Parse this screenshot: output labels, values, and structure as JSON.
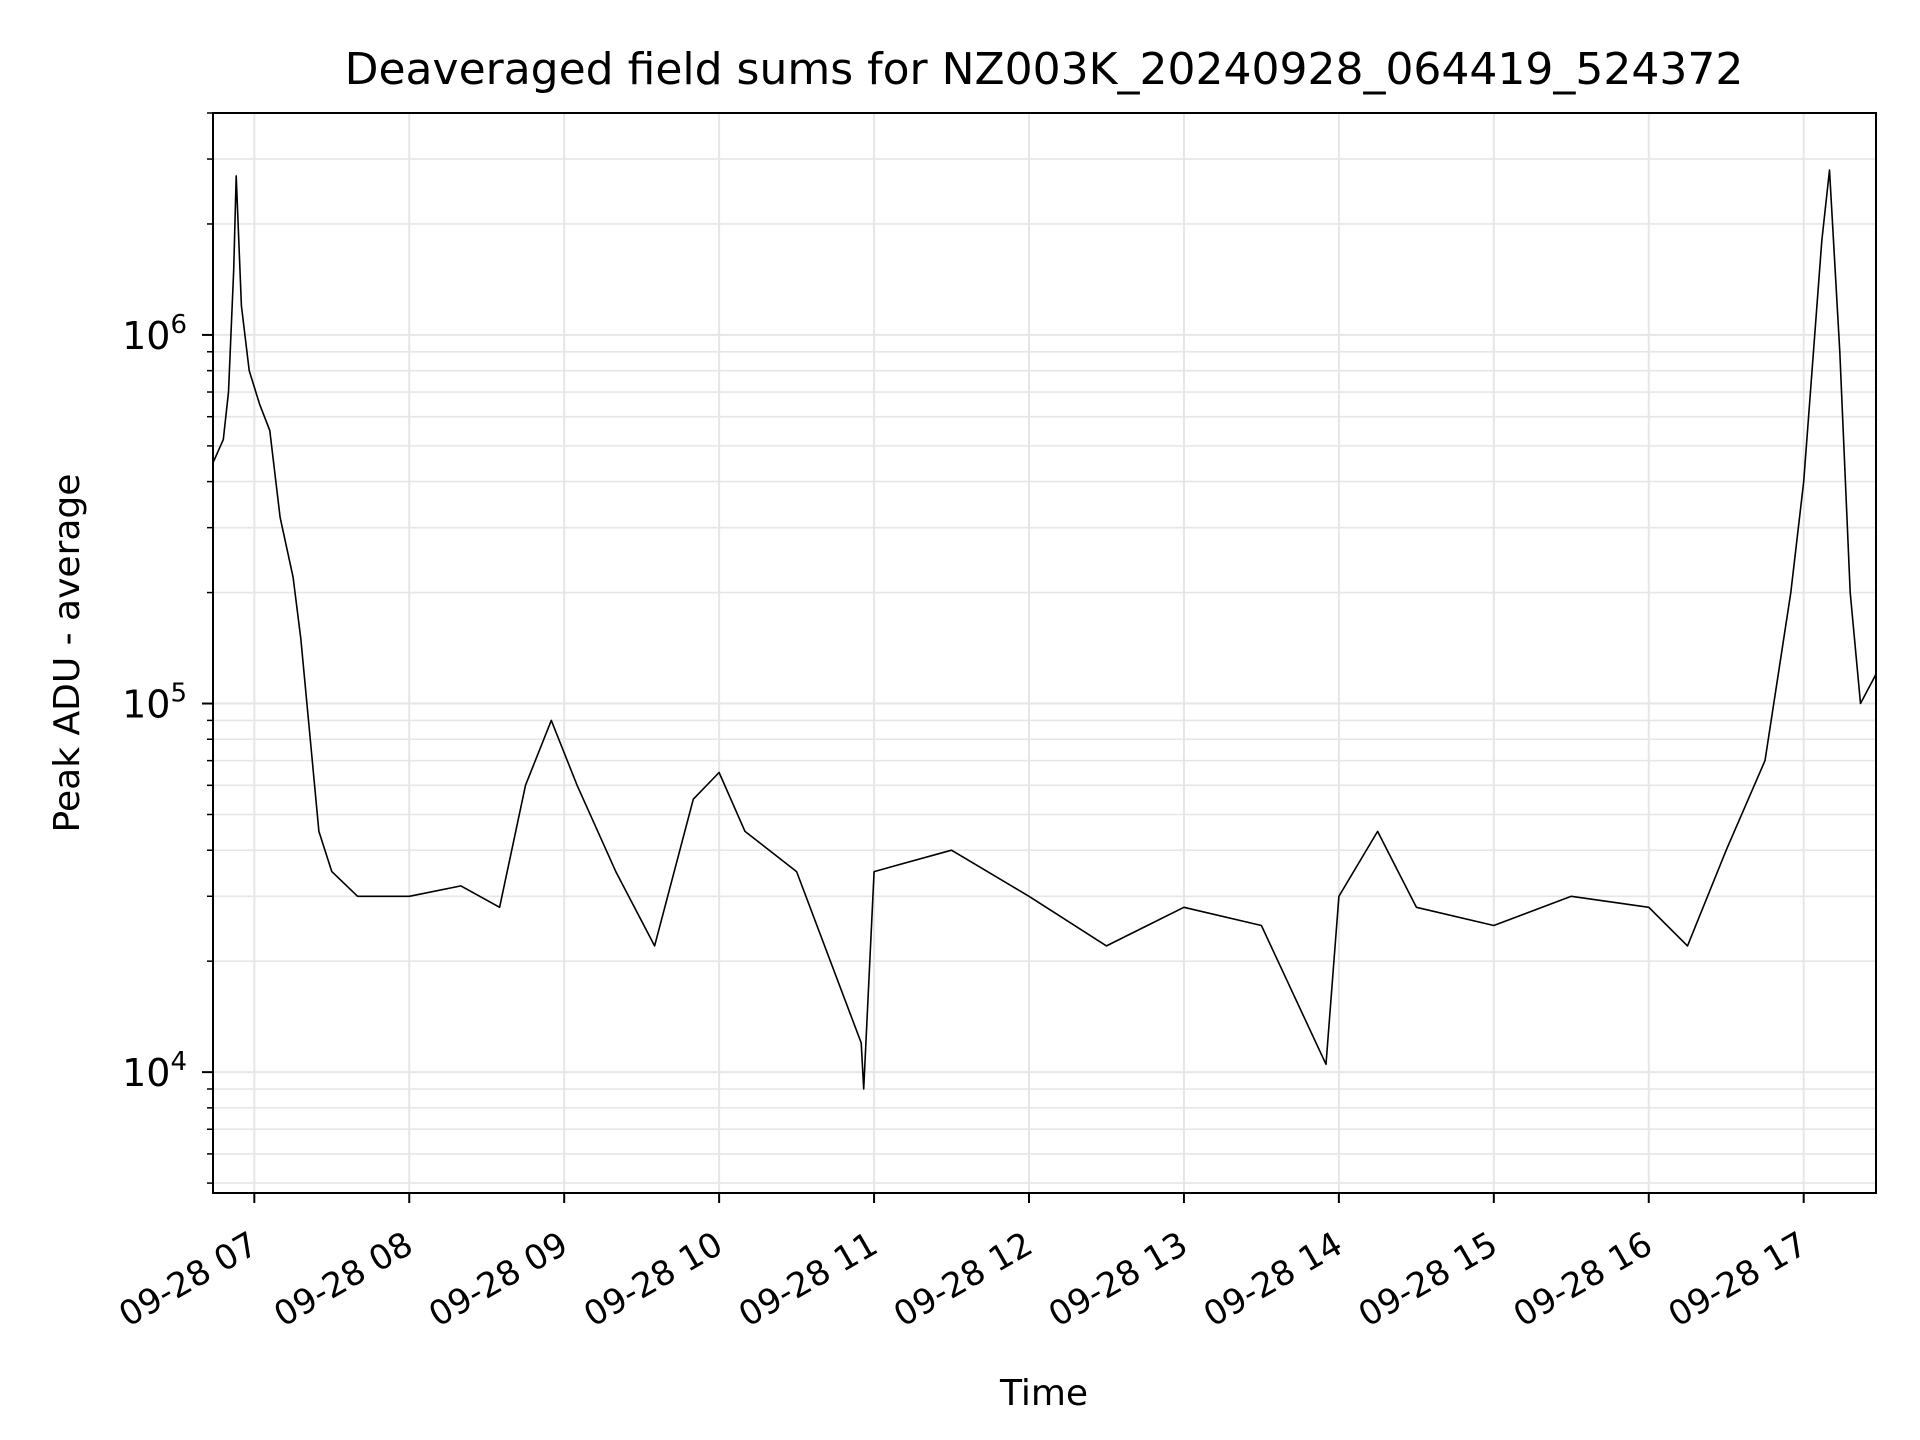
{
  "chart_data": {
    "type": "line",
    "title": "Deaveraged field sums for NZ003K_20240928_064419_524372",
    "xlabel": "Time",
    "ylabel": "Peak ADU - average",
    "y_scale": "log",
    "ylim": [
      4700,
      4000000
    ],
    "xlim": [
      "2024-09-28 06:44",
      "2024-09-28 17:28"
    ],
    "grid": true,
    "line_color": "#000000",
    "grid_color": "#e6e6e6",
    "x_ticks": [
      {
        "t": "2024-09-28 07:00",
        "label": "09-28 07"
      },
      {
        "t": "2024-09-28 08:00",
        "label": "09-28 08"
      },
      {
        "t": "2024-09-28 09:00",
        "label": "09-28 09"
      },
      {
        "t": "2024-09-28 10:00",
        "label": "09-28 10"
      },
      {
        "t": "2024-09-28 11:00",
        "label": "09-28 11"
      },
      {
        "t": "2024-09-28 12:00",
        "label": "09-28 12"
      },
      {
        "t": "2024-09-28 13:00",
        "label": "09-28 13"
      },
      {
        "t": "2024-09-28 14:00",
        "label": "09-28 14"
      },
      {
        "t": "2024-09-28 15:00",
        "label": "09-28 15"
      },
      {
        "t": "2024-09-28 16:00",
        "label": "09-28 16"
      },
      {
        "t": "2024-09-28 17:00",
        "label": "09-28 17"
      }
    ],
    "y_ticks": [
      {
        "value": 10000,
        "base": "10",
        "exp": "4"
      },
      {
        "value": 100000,
        "base": "10",
        "exp": "5"
      },
      {
        "value": 1000000,
        "base": "10",
        "exp": "6"
      }
    ],
    "series": [
      {
        "points": [
          [
            "2024-09-28 06:44",
            450000
          ],
          [
            "2024-09-28 06:48",
            520000
          ],
          [
            "2024-09-28 06:50",
            700000
          ],
          [
            "2024-09-28 06:52",
            1500000
          ],
          [
            "2024-09-28 06:53",
            2700000
          ],
          [
            "2024-09-28 06:55",
            1200000
          ],
          [
            "2024-09-28 06:58",
            800000
          ],
          [
            "2024-09-28 07:02",
            650000
          ],
          [
            "2024-09-28 07:06",
            550000
          ],
          [
            "2024-09-28 07:10",
            320000
          ],
          [
            "2024-09-28 07:15",
            220000
          ],
          [
            "2024-09-28 07:18",
            150000
          ],
          [
            "2024-09-28 07:21",
            90000
          ],
          [
            "2024-09-28 07:25",
            45000
          ],
          [
            "2024-09-28 07:30",
            35000
          ],
          [
            "2024-09-28 07:40",
            30000
          ],
          [
            "2024-09-28 08:00",
            30000
          ],
          [
            "2024-09-28 08:20",
            32000
          ],
          [
            "2024-09-28 08:35",
            28000
          ],
          [
            "2024-09-28 08:45",
            60000
          ],
          [
            "2024-09-28 08:55",
            90000
          ],
          [
            "2024-09-28 09:05",
            60000
          ],
          [
            "2024-09-28 09:20",
            35000
          ],
          [
            "2024-09-28 09:35",
            22000
          ],
          [
            "2024-09-28 09:50",
            55000
          ],
          [
            "2024-09-28 10:00",
            65000
          ],
          [
            "2024-09-28 10:10",
            45000
          ],
          [
            "2024-09-28 10:30",
            35000
          ],
          [
            "2024-09-28 10:55",
            12000
          ],
          [
            "2024-09-28 10:56",
            9000
          ],
          [
            "2024-09-28 11:00",
            35000
          ],
          [
            "2024-09-28 11:30",
            40000
          ],
          [
            "2024-09-28 12:00",
            30000
          ],
          [
            "2024-09-28 12:30",
            22000
          ],
          [
            "2024-09-28 13:00",
            28000
          ],
          [
            "2024-09-28 13:30",
            25000
          ],
          [
            "2024-09-28 13:55",
            10500
          ],
          [
            "2024-09-28 14:00",
            30000
          ],
          [
            "2024-09-28 14:15",
            45000
          ],
          [
            "2024-09-28 14:30",
            28000
          ],
          [
            "2024-09-28 15:00",
            25000
          ],
          [
            "2024-09-28 15:30",
            30000
          ],
          [
            "2024-09-28 16:00",
            28000
          ],
          [
            "2024-09-28 16:15",
            22000
          ],
          [
            "2024-09-28 16:30",
            40000
          ],
          [
            "2024-09-28 16:45",
            70000
          ],
          [
            "2024-09-28 16:55",
            200000
          ],
          [
            "2024-09-28 17:00",
            400000
          ],
          [
            "2024-09-28 17:07",
            1800000
          ],
          [
            "2024-09-28 17:10",
            2800000
          ],
          [
            "2024-09-28 17:14",
            900000
          ],
          [
            "2024-09-28 17:18",
            200000
          ],
          [
            "2024-09-28 17:22",
            100000
          ],
          [
            "2024-09-28 17:28",
            120000
          ]
        ]
      }
    ]
  }
}
